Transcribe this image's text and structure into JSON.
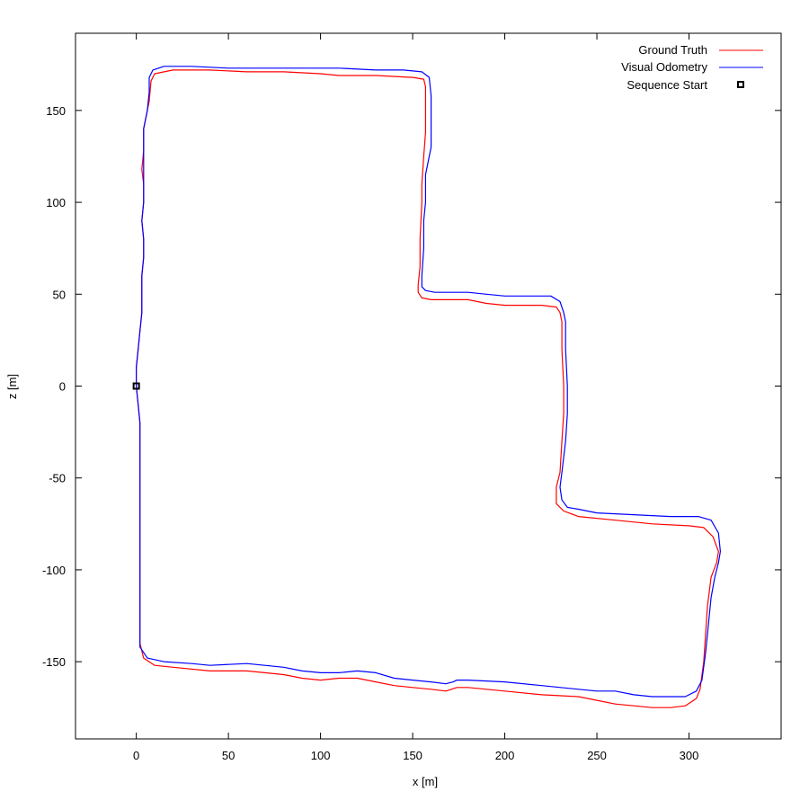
{
  "chart_data": {
    "type": "line",
    "title": "",
    "xlabel": "x [m]",
    "ylabel": "z [m]",
    "xlim": [
      -33,
      350
    ],
    "ylim": [
      -192,
      192
    ],
    "xticks": [
      0,
      50,
      100,
      150,
      200,
      250,
      300
    ],
    "yticks": [
      -150,
      -100,
      -50,
      0,
      50,
      100,
      150
    ],
    "grid": false,
    "legend_position": "top-right",
    "series": [
      {
        "name": "Ground Truth",
        "color": "#ff0000",
        "points": [
          [
            0,
            0
          ],
          [
            1,
            -10
          ],
          [
            2,
            -20
          ],
          [
            2,
            -40
          ],
          [
            2,
            -80
          ],
          [
            2,
            -120
          ],
          [
            2,
            -140
          ],
          [
            4,
            -148
          ],
          [
            10,
            -152
          ],
          [
            20,
            -153
          ],
          [
            40,
            -155
          ],
          [
            60,
            -155
          ],
          [
            80,
            -157
          ],
          [
            90,
            -159
          ],
          [
            100,
            -160
          ],
          [
            110,
            -159
          ],
          [
            120,
            -159
          ],
          [
            130,
            -161
          ],
          [
            140,
            -163
          ],
          [
            150,
            -164
          ],
          [
            160,
            -165
          ],
          [
            168,
            -166
          ],
          [
            174,
            -164
          ],
          [
            180,
            -164
          ],
          [
            200,
            -166
          ],
          [
            220,
            -168
          ],
          [
            240,
            -169
          ],
          [
            250,
            -171
          ],
          [
            260,
            -173
          ],
          [
            270,
            -174
          ],
          [
            280,
            -175
          ],
          [
            290,
            -175
          ],
          [
            298,
            -174
          ],
          [
            304,
            -170
          ],
          [
            306,
            -165
          ],
          [
            308,
            -150
          ],
          [
            310,
            -120
          ],
          [
            312,
            -104
          ],
          [
            315,
            -96
          ],
          [
            316,
            -90
          ],
          [
            313,
            -82
          ],
          [
            308,
            -77
          ],
          [
            300,
            -76
          ],
          [
            280,
            -75
          ],
          [
            260,
            -73
          ],
          [
            240,
            -71
          ],
          [
            232,
            -68
          ],
          [
            228,
            -64
          ],
          [
            228,
            -55
          ],
          [
            230,
            -47
          ],
          [
            231,
            -30
          ],
          [
            232,
            -15
          ],
          [
            232,
            0
          ],
          [
            231,
            20
          ],
          [
            231,
            35
          ],
          [
            230,
            40
          ],
          [
            228,
            43
          ],
          [
            220,
            44
          ],
          [
            210,
            44
          ],
          [
            200,
            44
          ],
          [
            190,
            45
          ],
          [
            180,
            47
          ],
          [
            170,
            47
          ],
          [
            160,
            47
          ],
          [
            155,
            48
          ],
          [
            153,
            51
          ],
          [
            153,
            55
          ],
          [
            154,
            65
          ],
          [
            154,
            80
          ],
          [
            155,
            100
          ],
          [
            155,
            110
          ],
          [
            156,
            125
          ],
          [
            157,
            138
          ],
          [
            157,
            148
          ],
          [
            157,
            163
          ],
          [
            156,
            167
          ],
          [
            150,
            168
          ],
          [
            130,
            169
          ],
          [
            110,
            169
          ],
          [
            100,
            170
          ],
          [
            80,
            171
          ],
          [
            60,
            171
          ],
          [
            40,
            172
          ],
          [
            20,
            172
          ],
          [
            10,
            170
          ],
          [
            8,
            166
          ],
          [
            7,
            155
          ],
          [
            6,
            150
          ],
          [
            4,
            140
          ],
          [
            4,
            128
          ],
          [
            3,
            118
          ],
          [
            4,
            110
          ],
          [
            4,
            100
          ],
          [
            3,
            90
          ],
          [
            4,
            80
          ],
          [
            4,
            70
          ],
          [
            3,
            60
          ],
          [
            3,
            50
          ],
          [
            3,
            40
          ],
          [
            2,
            30
          ],
          [
            1,
            20
          ],
          [
            0,
            10
          ],
          [
            0,
            0
          ]
        ]
      },
      {
        "name": "Visual Odometry",
        "color": "#0000ff",
        "points": [
          [
            0,
            0
          ],
          [
            1,
            -10
          ],
          [
            2,
            -20
          ],
          [
            2,
            -40
          ],
          [
            2,
            -80
          ],
          [
            2,
            -120
          ],
          [
            2,
            -142
          ],
          [
            6,
            -148
          ],
          [
            15,
            -150
          ],
          [
            30,
            -151
          ],
          [
            40,
            -152
          ],
          [
            60,
            -151
          ],
          [
            80,
            -153
          ],
          [
            90,
            -155
          ],
          [
            100,
            -156
          ],
          [
            110,
            -156
          ],
          [
            120,
            -155
          ],
          [
            130,
            -156
          ],
          [
            140,
            -159
          ],
          [
            150,
            -160
          ],
          [
            160,
            -161
          ],
          [
            168,
            -162
          ],
          [
            172,
            -161
          ],
          [
            174,
            -160
          ],
          [
            180,
            -160
          ],
          [
            200,
            -161
          ],
          [
            220,
            -163
          ],
          [
            240,
            -165
          ],
          [
            250,
            -166
          ],
          [
            260,
            -166
          ],
          [
            270,
            -168
          ],
          [
            280,
            -169
          ],
          [
            290,
            -169
          ],
          [
            298,
            -169
          ],
          [
            304,
            -166
          ],
          [
            307,
            -160
          ],
          [
            309,
            -145
          ],
          [
            312,
            -115
          ],
          [
            314,
            -104
          ],
          [
            316,
            -96
          ],
          [
            317,
            -90
          ],
          [
            316,
            -80
          ],
          [
            312,
            -73
          ],
          [
            305,
            -71
          ],
          [
            290,
            -71
          ],
          [
            270,
            -70
          ],
          [
            250,
            -69
          ],
          [
            240,
            -67
          ],
          [
            234,
            -66
          ],
          [
            231,
            -62
          ],
          [
            230,
            -55
          ],
          [
            231,
            -47
          ],
          [
            233,
            -30
          ],
          [
            234,
            -15
          ],
          [
            234,
            0
          ],
          [
            233,
            20
          ],
          [
            233,
            35
          ],
          [
            232,
            40
          ],
          [
            230,
            46
          ],
          [
            225,
            49
          ],
          [
            215,
            49
          ],
          [
            200,
            49
          ],
          [
            190,
            50
          ],
          [
            180,
            51
          ],
          [
            170,
            51
          ],
          [
            162,
            51
          ],
          [
            157,
            52
          ],
          [
            155,
            54
          ],
          [
            155,
            60
          ],
          [
            156,
            75
          ],
          [
            156,
            90
          ],
          [
            157,
            100
          ],
          [
            157,
            115
          ],
          [
            159,
            125
          ],
          [
            160,
            130
          ],
          [
            160,
            142
          ],
          [
            160,
            158
          ],
          [
            159,
            168
          ],
          [
            155,
            171
          ],
          [
            145,
            172
          ],
          [
            130,
            172
          ],
          [
            110,
            173
          ],
          [
            90,
            173
          ],
          [
            70,
            173
          ],
          [
            50,
            173
          ],
          [
            30,
            174
          ],
          [
            15,
            174
          ],
          [
            9,
            172
          ],
          [
            7,
            168
          ],
          [
            7,
            160
          ],
          [
            6,
            150
          ],
          [
            4,
            140
          ],
          [
            4,
            128
          ],
          [
            4,
            118
          ],
          [
            4,
            110
          ],
          [
            4,
            100
          ],
          [
            3,
            90
          ],
          [
            4,
            80
          ],
          [
            4,
            70
          ],
          [
            3,
            60
          ],
          [
            3,
            50
          ],
          [
            3,
            40
          ],
          [
            2,
            30
          ],
          [
            1,
            20
          ],
          [
            0,
            10
          ],
          [
            0,
            0
          ]
        ]
      }
    ],
    "markers": [
      {
        "name": "Sequence Start",
        "x": 0,
        "y": 0,
        "symbol": "open-square",
        "color": "#000000"
      }
    ]
  }
}
